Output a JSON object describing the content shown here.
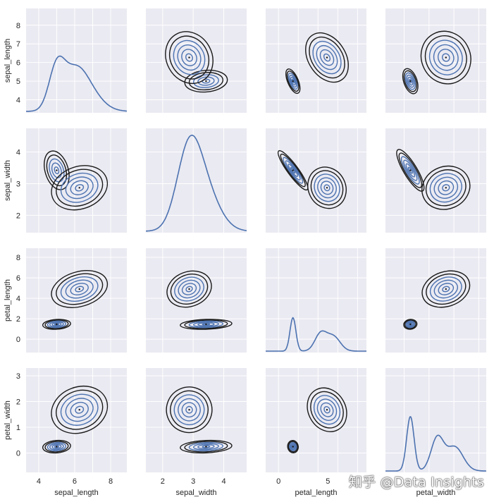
{
  "watermark": "知乎 @Data Insights",
  "chart_data": {
    "type": "pairgrid-kde",
    "variables": [
      "sepal_length",
      "sepal_width",
      "petal_length",
      "petal_width"
    ],
    "ranges": {
      "sepal_length": [
        3.3,
        8.9
      ],
      "sepal_width": [
        1.45,
        4.75
      ],
      "petal_length": [
        -1.3,
        8.9
      ],
      "petal_width": [
        -0.75,
        3.3
      ]
    },
    "ticks": {
      "sepal_length": [
        4,
        5,
        6,
        7,
        8
      ],
      "sepal_width": [
        2,
        3,
        4
      ],
      "petal_length": [
        0,
        2,
        4,
        6,
        8
      ],
      "petal_width": [
        0,
        1,
        2,
        3
      ]
    },
    "bottom_ticks": {
      "sepal_length": [
        4,
        6,
        8
      ],
      "sepal_width": [
        2,
        3,
        4
      ],
      "petal_length": [
        0,
        5
      ],
      "petal_width": []
    },
    "diagonal": "1-D KDE curve",
    "off_diagonal": "2-D KDE contours",
    "grid": true,
    "line_color": "#4c72b0",
    "outer_contour_color": "#1a1a1a",
    "background": "#eaeaf2",
    "clusters": {
      "setosa": {
        "sepal_length": 5.0,
        "sepal_width": 3.42,
        "petal_length": 1.46,
        "petal_width": 0.25,
        "sd": {
          "sepal_length": 0.35,
          "sepal_width": 0.38,
          "petal_length": 0.24,
          "petal_width": 0.12
        }
      },
      "versicolor": {
        "sepal_length": 5.94,
        "sepal_width": 2.77,
        "petal_length": 4.26,
        "petal_width": 1.33,
        "sd": {
          "sepal_length": 0.52,
          "sepal_width": 0.31,
          "petal_length": 0.47,
          "petal_width": 0.2
        }
      },
      "virginica": {
        "sepal_length": 6.59,
        "sepal_width": 2.97,
        "petal_length": 5.55,
        "petal_width": 2.03,
        "sd": {
          "sepal_length": 0.64,
          "sepal_width": 0.32,
          "petal_length": 0.55,
          "petal_width": 0.27
        }
      }
    }
  }
}
